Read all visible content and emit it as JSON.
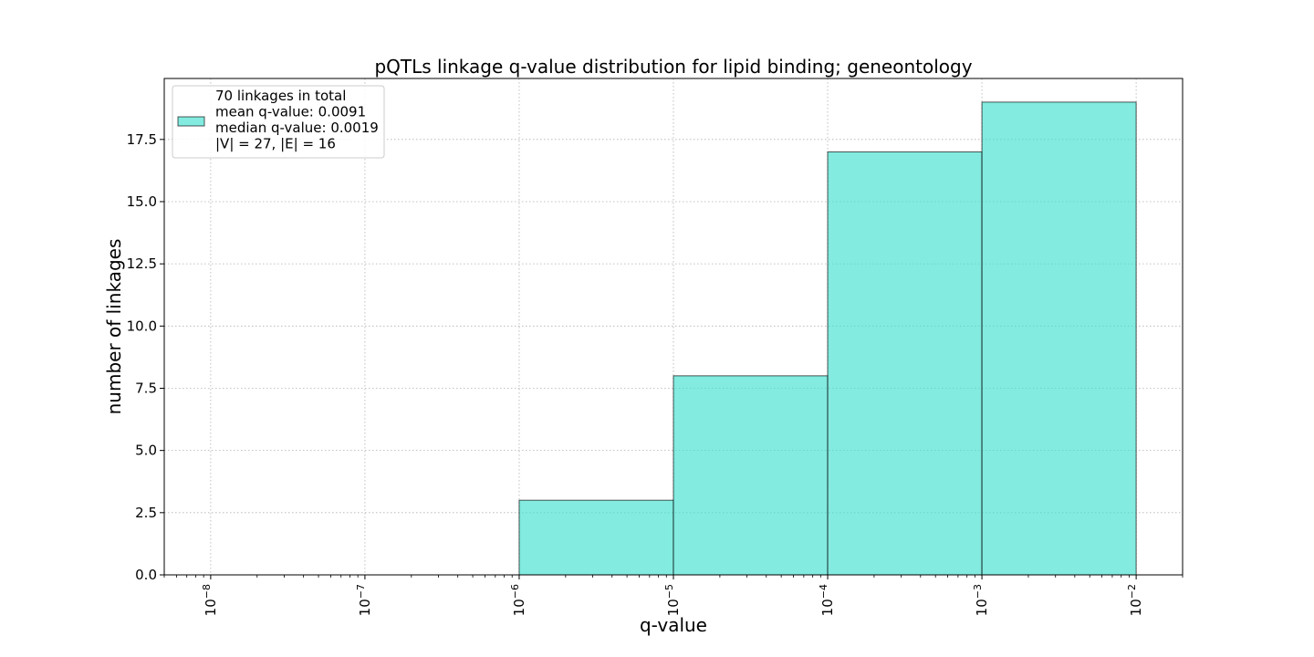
{
  "chart_data": {
    "type": "bar",
    "title": "pQTLs linkage q-value distribution for lipid binding; geneontology",
    "xlabel": "q-value",
    "ylabel": "number of linkages",
    "x_scale": "log",
    "xlim": [
      5e-09,
      0.02
    ],
    "ylim": [
      0,
      19.95
    ],
    "grid": true,
    "bins": [
      {
        "x_start": 1e-06,
        "x_end": 1e-05,
        "value": 3
      },
      {
        "x_start": 1e-05,
        "x_end": 0.0001,
        "value": 8
      },
      {
        "x_start": 0.0001,
        "x_end": 0.001,
        "value": 17
      },
      {
        "x_start": 0.001,
        "x_end": 0.01,
        "value": 19
      }
    ],
    "x_ticks": [
      {
        "value": 1e-08,
        "base": "10",
        "exp": "−8"
      },
      {
        "value": 1e-07,
        "base": "10",
        "exp": "−7"
      },
      {
        "value": 1e-06,
        "base": "10",
        "exp": "−6"
      },
      {
        "value": 1e-05,
        "base": "10",
        "exp": "−5"
      },
      {
        "value": 0.0001,
        "base": "10",
        "exp": "−4"
      },
      {
        "value": 0.001,
        "base": "10",
        "exp": "−3"
      },
      {
        "value": 0.01,
        "base": "10",
        "exp": "−2"
      }
    ],
    "y_ticks": [
      {
        "value": 0,
        "label": "0.0"
      },
      {
        "value": 2.5,
        "label": "2.5"
      },
      {
        "value": 5,
        "label": "5.0"
      },
      {
        "value": 7.5,
        "label": "7.5"
      },
      {
        "value": 10,
        "label": "10.0"
      },
      {
        "value": 12.5,
        "label": "12.5"
      },
      {
        "value": 15,
        "label": "15.0"
      },
      {
        "value": 17.5,
        "label": "17.5"
      }
    ],
    "legend": {
      "placement": "top-left",
      "lines": [
        "70 linkages in total",
        "mean q-value: 0.0091",
        "median q-value: 0.0019",
        "|V| = 27, |E| = 16"
      ]
    },
    "colors": {
      "bar_fill": "#40E0D0",
      "bar_opacity": 0.65,
      "bar_edge": "#000000",
      "grid": "#b0b0b0"
    }
  }
}
